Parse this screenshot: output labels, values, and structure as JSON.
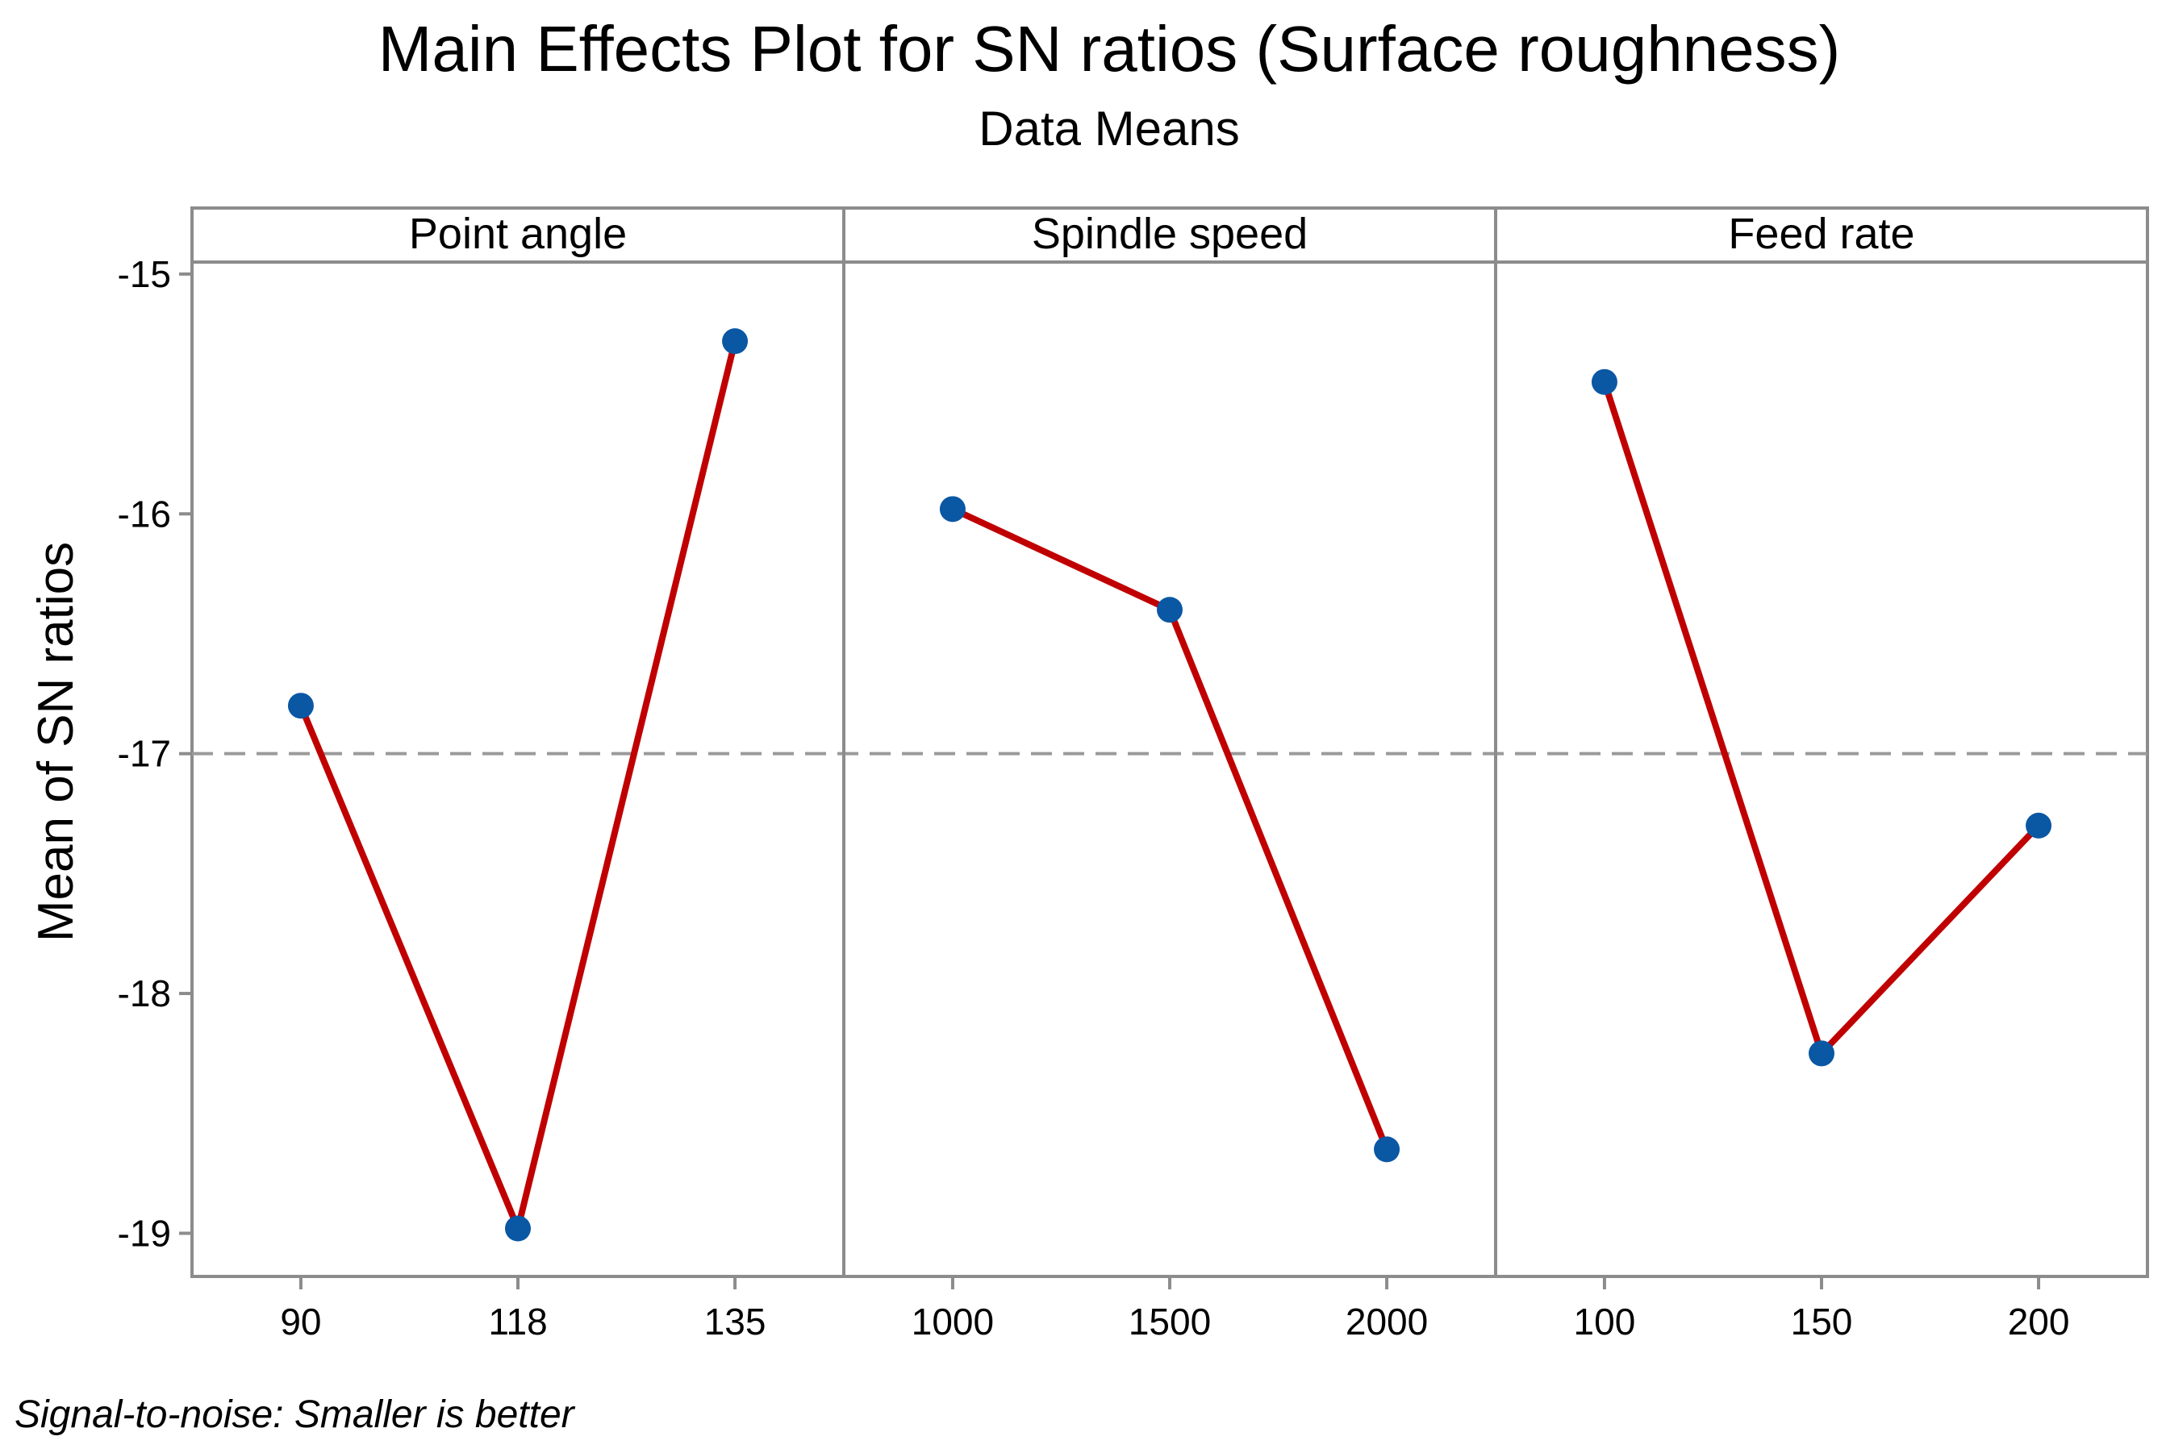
{
  "chart_data": {
    "type": "line",
    "title": "Main Effects Plot for SN ratios (Surface roughness)",
    "subtitle": "Data Means",
    "ylabel": "Mean of SN ratios",
    "ylim": [
      -19.18,
      -14.95
    ],
    "yticks": [
      -15,
      -16,
      -17,
      -18,
      -19
    ],
    "yticklabels": [
      "-15",
      "-16",
      "-17",
      "-18",
      "-19"
    ],
    "reference_line": -17.0,
    "footnote": "Signal-to-noise: Smaller is better",
    "panels": [
      {
        "name": "Point angle",
        "categories": [
          "90",
          "118",
          "135"
        ],
        "values": [
          -16.8,
          -18.98,
          -15.28
        ]
      },
      {
        "name": "Spindle speed",
        "categories": [
          "1000",
          "1500",
          "2000"
        ],
        "values": [
          -15.98,
          -16.4,
          -18.65
        ]
      },
      {
        "name": "Feed rate",
        "categories": [
          "100",
          "150",
          "200"
        ],
        "values": [
          -15.45,
          -18.25,
          -17.3
        ]
      }
    ],
    "colors": {
      "line": "#c00000",
      "marker": "#0a57a4",
      "frame": "#8c8c8c",
      "reference": "#9a9a9a"
    }
  }
}
